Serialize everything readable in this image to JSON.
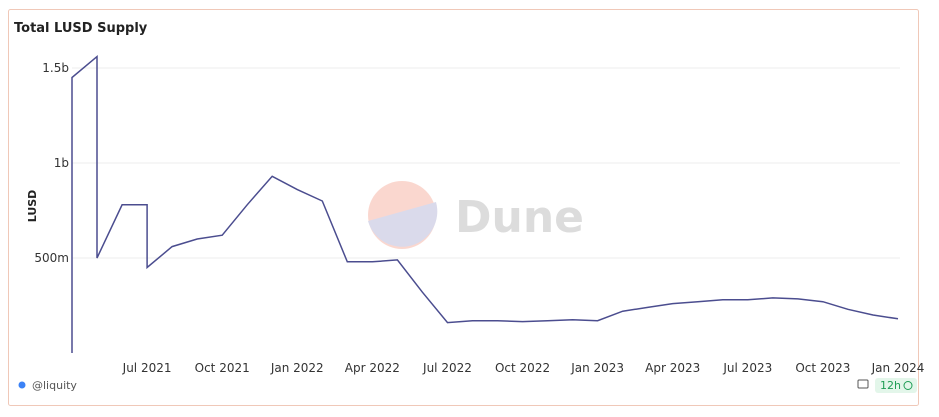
{
  "chart_data": {
    "type": "line",
    "title": "Total LUSD Supply",
    "y_label": "LUSD",
    "x": [
      "2021-04",
      "2021-04",
      "2021-05",
      "2021-05",
      "2021-06",
      "2021-07",
      "2021-07",
      "2021-08",
      "2021-09",
      "2021-10",
      "2021-11",
      "2021-12",
      "2022-01",
      "2022-02",
      "2022-03",
      "2022-04",
      "2022-05",
      "2022-06",
      "2022-07",
      "2022-08",
      "2022-09",
      "2022-10",
      "2022-11",
      "2022-12",
      "2023-01",
      "2023-02",
      "2023-03",
      "2023-04",
      "2023-05",
      "2023-06",
      "2023-07",
      "2023-08",
      "2023-09",
      "2023-10",
      "2023-11",
      "2023-12",
      "2024-01"
    ],
    "series": [
      {
        "name": "LUSD",
        "color": "#4b4d8f",
        "values": [
          0,
          1450000000,
          1560000000,
          500000000,
          780000000,
          780000000,
          450000000,
          560000000,
          600000000,
          620000000,
          780000000,
          930000000,
          860000000,
          800000000,
          480000000,
          480000000,
          490000000,
          320000000,
          160000000,
          170000000,
          170000000,
          165000000,
          170000000,
          175000000,
          170000000,
          220000000,
          240000000,
          260000000,
          270000000,
          280000000,
          280000000,
          290000000,
          285000000,
          270000000,
          230000000,
          200000000,
          180000000
        ]
      }
    ],
    "xlim": [
      "2021-04",
      "2024-01"
    ],
    "xticks": [
      {
        "value": "2021-07",
        "label": "Jul 2021"
      },
      {
        "value": "2021-10",
        "label": "Oct 2021"
      },
      {
        "value": "2022-01",
        "label": "Jan 2022"
      },
      {
        "value": "2022-04",
        "label": "Apr 2022"
      },
      {
        "value": "2022-07",
        "label": "Jul 2022"
      },
      {
        "value": "2022-10",
        "label": "Oct 2022"
      },
      {
        "value": "2023-01",
        "label": "Jan 2023"
      },
      {
        "value": "2023-04",
        "label": "Apr 2023"
      },
      {
        "value": "2023-07",
        "label": "Jul 2023"
      },
      {
        "value": "2023-10",
        "label": "Oct 2023"
      },
      {
        "value": "2024-01",
        "label": "Jan 2024"
      }
    ],
    "ylim": [
      0,
      1600000000
    ],
    "yticks": [
      {
        "value": 500000000,
        "label": "500m"
      },
      {
        "value": 1000000000,
        "label": "1b"
      },
      {
        "value": 1500000000,
        "label": "1.5b"
      }
    ],
    "grid": true
  },
  "footer": {
    "author": "@liquity",
    "refresh": "12h"
  },
  "watermark": "Dune"
}
